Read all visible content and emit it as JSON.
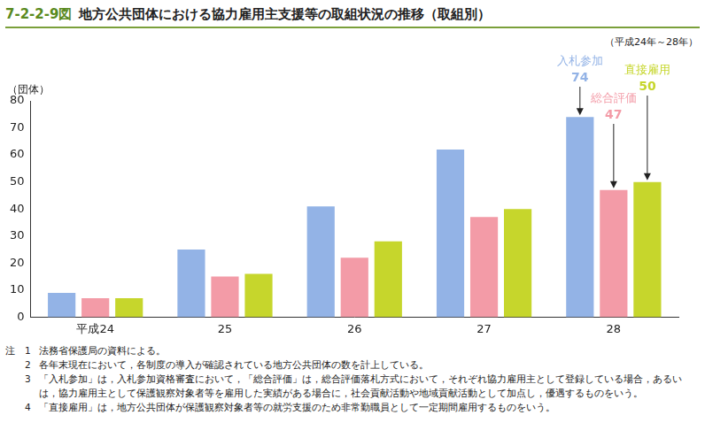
{
  "chart_data": {
    "type": "bar",
    "figure_label": "7-2-2-9図",
    "title": "地方公共団体における協力雇用主支援等の取組状況の推移（取組別）",
    "subtitle": "（平成24年～28年）",
    "y_label": "（団体）",
    "categories": [
      "平成24",
      "25",
      "26",
      "27",
      "28"
    ],
    "series": [
      {
        "name": "入札参加",
        "color": "#93b3e6",
        "values": [
          9,
          25,
          41,
          62,
          74
        ]
      },
      {
        "name": "総合評価",
        "color": "#f39ba7",
        "values": [
          7,
          15,
          22,
          37,
          47
        ]
      },
      {
        "name": "直接雇用",
        "color": "#c6d62c",
        "values": [
          7,
          16,
          28,
          40,
          50
        ]
      }
    ],
    "ylim": [
      0,
      80
    ],
    "yticks": [
      0,
      10,
      20,
      30,
      40,
      50,
      60,
      70,
      80
    ],
    "grid": false,
    "annotations": [
      {
        "text": "入札参加",
        "series": "入札参加",
        "x": "28",
        "y": 74
      },
      {
        "text": "総合評価",
        "series": "総合評価",
        "x": "28",
        "y": 47
      },
      {
        "text": "直接雇用",
        "series": "直接雇用",
        "x": "28",
        "y": 50
      }
    ],
    "notes_heading": "注",
    "notes": [
      {
        "label": "1",
        "text": "法務省保護局の資料による。"
      },
      {
        "label": "2",
        "text": "各年末現在において，各制度の導入が確認されている地方公共団体の数を計上している。"
      },
      {
        "label": "3",
        "text": "「入札参加」は，入札参加資格審査において，「総合評価」は，総合評価落札方式において，それぞれ協力雇用主として登録している場合，あるいは，協力雇用主として保護観察対象者等を雇用した実績がある場合に，社会貢献活動や地域貢献活動として加点し，優遇するものをいう。"
      },
      {
        "label": "4",
        "text": "「直接雇用」は，地方公共団体が保護観察対象者等の就労支援のため非常勤職員として一定期間雇用するものをいう。"
      }
    ]
  }
}
